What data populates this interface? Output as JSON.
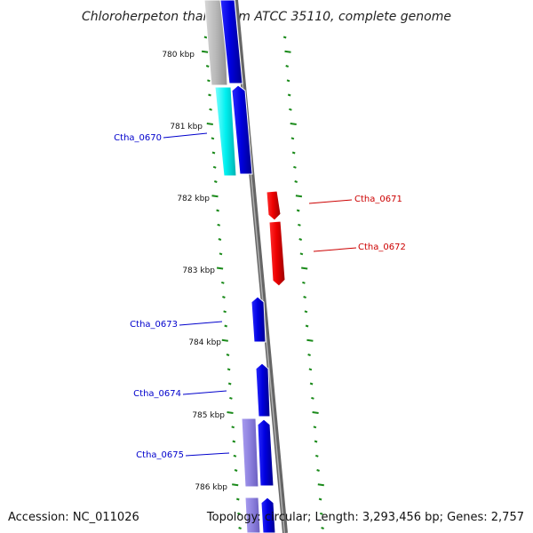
{
  "title": "Chloroherpeton thalassium ATCC 35110, complete genome",
  "accession_text": "Accession: NC_011026",
  "summary_text": "Topology: circular; Length: 3,293,456 bp; Genes: 2,757",
  "kbp_labels": [
    "780 kbp",
    "781 kbp",
    "782 kbp",
    "783 kbp",
    "784 kbp",
    "785 kbp",
    "786 kbp"
  ],
  "gene_labels": [
    {
      "name": "Ctha_0670",
      "color": "#0000cc"
    },
    {
      "name": "Ctha_0671",
      "color": "#cc0000"
    },
    {
      "name": "Ctha_0672",
      "color": "#cc0000"
    },
    {
      "name": "Ctha_0673",
      "color": "#0000cc"
    },
    {
      "name": "Ctha_0674",
      "color": "#0000cc"
    },
    {
      "name": "Ctha_0675",
      "color": "#0000cc"
    }
  ],
  "colors": {
    "forward_gene": "#0000e6",
    "reverse_gene": "#ee0000",
    "cyan_gene": "#00f0f0",
    "gray_gene": "#b8b8b8",
    "lavender_gene": "#8c80dd",
    "backbone": "#888888",
    "tick": "#1a8a1a"
  }
}
